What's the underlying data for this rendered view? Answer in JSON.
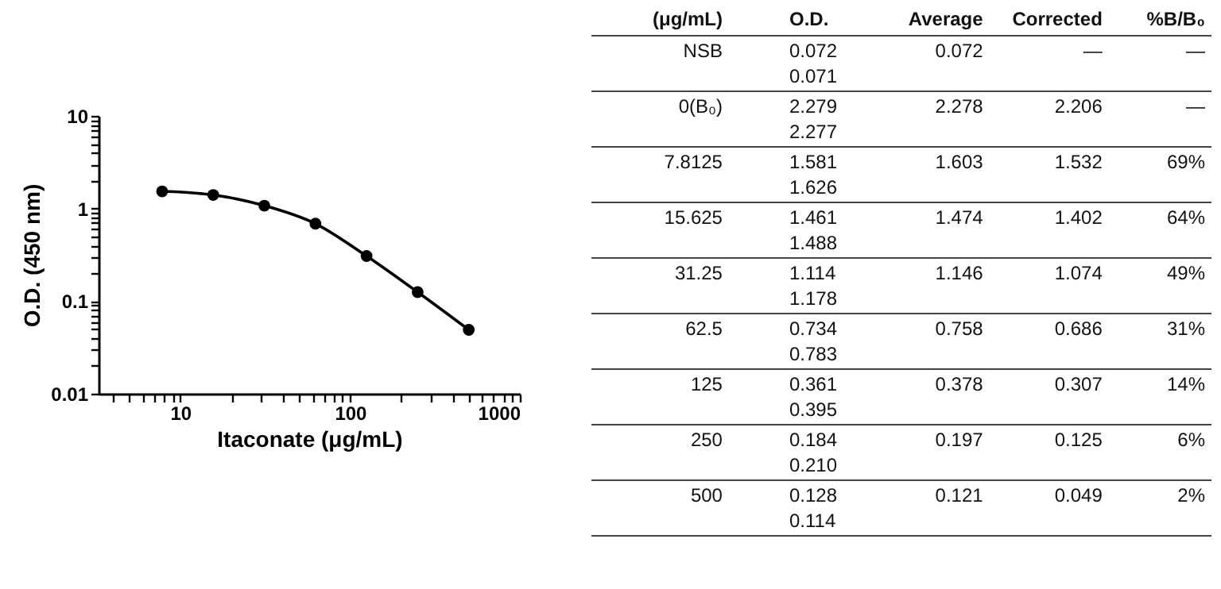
{
  "chart_data": [
    {
      "type": "line",
      "xlabel": "Itaconate (μg/mL)",
      "ylabel": "O.D. (450 nm)",
      "log": "xy",
      "marker": "circle",
      "line_style": "solid",
      "x": [
        7.8125,
        15.625,
        31.25,
        62.5,
        125,
        250,
        500
      ],
      "series": [
        {
          "color": "#000000",
          "values": [
            1.532,
            1.402,
            1.074,
            0.686,
            0.307,
            0.125,
            0.049
          ]
        }
      ],
      "xlim": [
        3.3,
        1000
      ],
      "ylim": [
        0.01,
        10
      ],
      "xticks": [
        {
          "value": 4,
          "label": null
        },
        {
          "value": 5,
          "label": null
        },
        {
          "value": 6,
          "label": null
        },
        {
          "value": 7,
          "label": null
        },
        {
          "value": 8,
          "label": null
        },
        {
          "value": 9,
          "label": null
        },
        10,
        {
          "value": 20,
          "label": null
        },
        {
          "value": 30,
          "label": null
        },
        {
          "value": 40,
          "label": null
        },
        {
          "value": 50,
          "label": null
        },
        {
          "value": 60,
          "label": null
        },
        {
          "value": 70,
          "label": null
        },
        {
          "value": 80,
          "label": null
        },
        {
          "value": 90,
          "label": null
        },
        100,
        {
          "value": 200,
          "label": null
        },
        {
          "value": 300,
          "label": null
        },
        {
          "value": 400,
          "label": null
        },
        {
          "value": 500,
          "label": null
        },
        {
          "value": 600,
          "label": null
        },
        {
          "value": 700,
          "label": null
        },
        {
          "value": 800,
          "label": null
        },
        {
          "value": 900,
          "label": null
        },
        1000
      ],
      "yticks": [
        0.01,
        {
          "value": 0.02,
          "label": null
        },
        {
          "value": 0.03,
          "label": null
        },
        {
          "value": 0.04,
          "label": null
        },
        {
          "value": 0.05,
          "label": null
        },
        {
          "value": 0.06,
          "label": null
        },
        {
          "value": 0.07,
          "label": null
        },
        {
          "value": 0.08,
          "label": null
        },
        {
          "value": 0.09,
          "label": null
        },
        0.1,
        {
          "value": 0.2,
          "label": null
        },
        {
          "value": 0.3,
          "label": null
        },
        {
          "value": 0.4,
          "label": null
        },
        {
          "value": 0.5,
          "label": null
        },
        {
          "value": 0.6,
          "label": null
        },
        {
          "value": 0.7,
          "label": null
        },
        {
          "value": 0.8,
          "label": null
        },
        {
          "value": 0.9,
          "label": null
        },
        1,
        {
          "value": 2,
          "label": null
        },
        {
          "value": 3,
          "label": null
        },
        {
          "value": 4,
          "label": null
        },
        {
          "value": 5,
          "label": null
        },
        {
          "value": 6,
          "label": null
        },
        {
          "value": 7,
          "label": null
        },
        {
          "value": 8,
          "label": null
        },
        {
          "value": 9,
          "label": null
        },
        10
      ]
    },
    {
      "type": "other",
      "annotations": [
        "(μg/mL)",
        "O.D.",
        "Average",
        "Corrected",
        "%B/B₀",
        "NSB",
        "0.072\n0.071",
        "0.072",
        "—",
        "—",
        "0(B₀)",
        "2.279\n2.277",
        "2.278",
        "2.206",
        "—",
        "7.8125",
        "1.581\n1.626",
        "1.603",
        "1.532",
        "69%",
        "15.625",
        "1.461\n1.488",
        "1.474",
        "1.402",
        "64%",
        "31.25",
        "1.114\n1.178",
        "1.146",
        "1.074",
        "49%",
        "62.5",
        "0.734\n0.783",
        "0.758",
        "0.686",
        "31%",
        "125",
        "0.361\n0.395",
        "0.378",
        "0.307",
        "14%",
        "250",
        "0.184\n0.210",
        "0.197",
        "0.125",
        "6%",
        "500",
        "0.128\n0.114",
        "0.121",
        "0.049",
        "2%"
      ]
    }
  ]
}
